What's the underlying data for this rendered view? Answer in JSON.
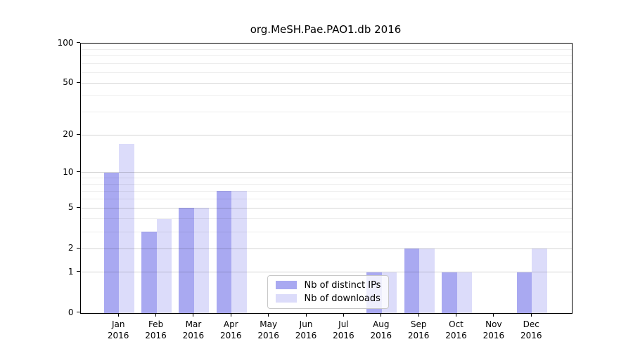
{
  "chart_data": {
    "type": "bar",
    "title": "org.MeSH.Pae.PAO1.db 2016",
    "year_label": "2016",
    "categories": [
      "Jan",
      "Feb",
      "Mar",
      "Apr",
      "May",
      "Jun",
      "Jul",
      "Aug",
      "Sep",
      "Oct",
      "Nov",
      "Dec"
    ],
    "series": [
      {
        "name": "Nb of distinct IPs",
        "color": "#a9a9f1",
        "values": [
          10,
          3,
          5,
          7,
          0,
          0,
          0,
          1,
          2,
          1,
          0,
          1
        ]
      },
      {
        "name": "Nb of downloads",
        "color": "#dcdcfa",
        "values": [
          17,
          4,
          5,
          7,
          0,
          0,
          0,
          1,
          2,
          1,
          0,
          2
        ]
      }
    ],
    "y_scale": "log10(1+v)",
    "ylim": [
      0,
      100
    ],
    "y_ticks_major": [
      0,
      1,
      2,
      5,
      10,
      20,
      50,
      100
    ],
    "y_ticks_minor": [
      3,
      4,
      6,
      7,
      8,
      9,
      30,
      40,
      60,
      70,
      80,
      90
    ],
    "grid": "horizontal",
    "legend": {
      "position": "inside-lower-right",
      "entries": [
        "Nb of distinct IPs",
        "Nb of downloads"
      ]
    }
  }
}
